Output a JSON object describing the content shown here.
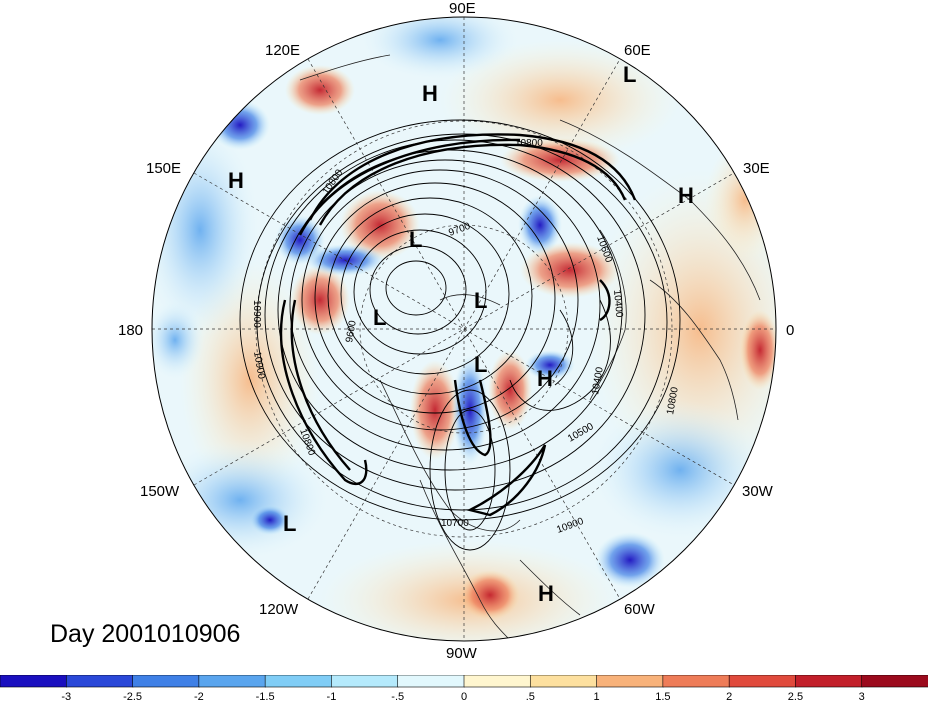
{
  "map": {
    "projection": "north-polar-stereographic",
    "longitude_labels": [
      "90E",
      "120E",
      "60E",
      "150E",
      "30E",
      "180",
      "0",
      "150W",
      "30W",
      "120W",
      "60W",
      "90W"
    ],
    "pressure_centers": [
      "H",
      "L",
      "H",
      "H",
      "L",
      "L",
      "L",
      "L",
      "H",
      "L",
      "H"
    ],
    "contour_labels": [
      "10800",
      "10800",
      "9700",
      "10600",
      "10900",
      "9600",
      "10400",
      "10900",
      "10400",
      "10800",
      "10500",
      "10800",
      "10700",
      "10900"
    ]
  },
  "caption": "Day 2001010906",
  "colorbar": {
    "tick_labels": [
      "-3",
      "-2.5",
      "-2",
      "-1.5",
      "-1",
      "-.5",
      "0",
      ".5",
      "1",
      "1.5",
      "2",
      "2.5",
      "3"
    ],
    "colors": [
      "#1a0fbf",
      "#2a48d8",
      "#3f80e6",
      "#5aa5ee",
      "#80cdf6",
      "#b5eafc",
      "#e2f8fd",
      "#fff6cf",
      "#fde09f",
      "#f8b27a",
      "#ee7c58",
      "#e04a3c",
      "#c21f2a",
      "#9b0a1d"
    ]
  },
  "colors": {
    "ocean_base": "#eef9fc",
    "land_warm": "#fde2a8",
    "cold_anomaly": "#2f6fe0",
    "warm_anomaly": "#e2472f"
  }
}
